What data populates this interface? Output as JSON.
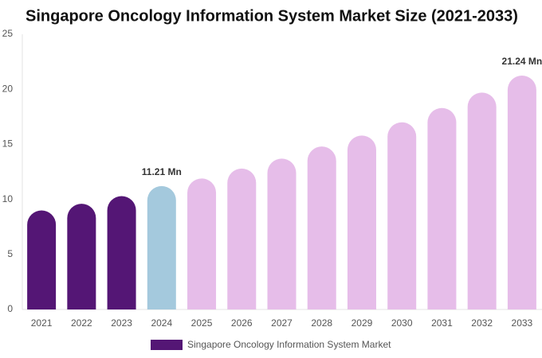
{
  "chart_data": {
    "type": "bar",
    "title": "Singapore Oncology Information System Market Size (2021-2033)",
    "categories": [
      "2021",
      "2022",
      "2023",
      "2024",
      "2025",
      "2026",
      "2027",
      "2028",
      "2029",
      "2030",
      "2031",
      "2032",
      "2033"
    ],
    "series": [
      {
        "name": "Singapore Oncology Information System Market",
        "color": "#541675",
        "values": [
          9.0,
          9.6,
          10.3,
          11.21,
          11.9,
          12.8,
          13.7,
          14.8,
          15.8,
          17.0,
          18.3,
          19.7,
          21.24
        ],
        "value_labels": [
          null,
          null,
          null,
          "11.21 Mn",
          null,
          null,
          null,
          null,
          null,
          null,
          null,
          null,
          "21.24 Mn"
        ]
      }
    ],
    "bar_colors": [
      "#541675",
      "#541675",
      "#541675",
      "#a4c9dd",
      "#e6bde9",
      "#e6bde9",
      "#e6bde9",
      "#e6bde9",
      "#e6bde9",
      "#e6bde9",
      "#e6bde9",
      "#e6bde9",
      "#e6bde9"
    ],
    "ylim": [
      0,
      25
    ],
    "yticks": [
      0,
      5,
      10,
      15,
      20,
      25
    ],
    "grid": false
  }
}
